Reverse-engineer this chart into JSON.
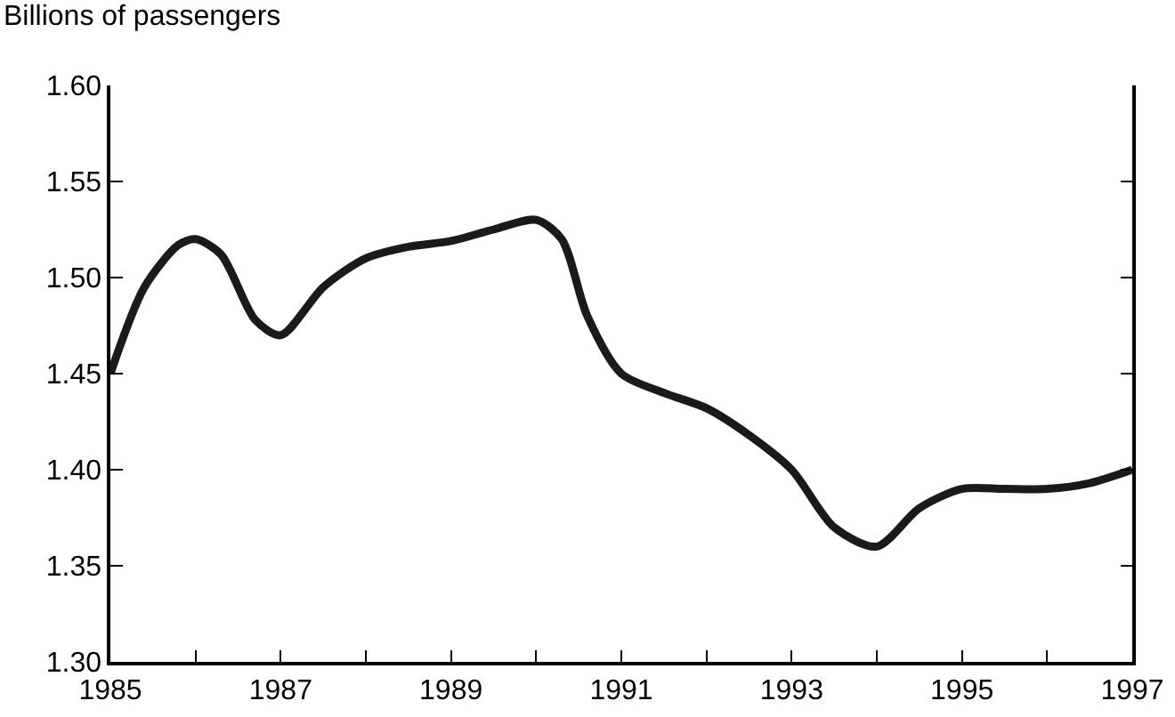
{
  "chart_data": {
    "type": "line",
    "ylabel": "Billions of passengers",
    "x": [
      1985,
      1985.4,
      1985.8,
      1986,
      1986.3,
      1986.7,
      1987,
      1987.5,
      1988,
      1988.5,
      1989,
      1989.5,
      1990,
      1990.3,
      1990.6,
      1991,
      1991.5,
      1992,
      1992.5,
      1993,
      1993.5,
      1994,
      1994.5,
      1995,
      1995.5,
      1996,
      1996.5,
      1997
    ],
    "series": [
      {
        "color": "#1a1a1a",
        "values": [
          1.45,
          1.495,
          1.517,
          1.52,
          1.512,
          1.478,
          1.47,
          1.495,
          1.51,
          1.516,
          1.519,
          1.525,
          1.53,
          1.52,
          1.48,
          1.45,
          1.44,
          1.432,
          1.418,
          1.4,
          1.37,
          1.36,
          1.38,
          1.39,
          1.39,
          1.39,
          1.393,
          1.4
        ]
      }
    ],
    "xlim": [
      1985,
      1997
    ],
    "xticks": [
      1985,
      {
        "value": 1986,
        "label": null
      },
      1987,
      {
        "value": 1988,
        "label": null
      },
      1989,
      {
        "value": 1990,
        "label": null
      },
      1991,
      {
        "value": 1992,
        "label": null
      },
      1993,
      {
        "value": 1994,
        "label": null
      },
      1995,
      {
        "value": 1996,
        "label": null
      },
      1997
    ],
    "ylim": [
      1.3,
      1.6
    ],
    "yticks": [
      {
        "value": 1.3,
        "label": "1.30"
      },
      {
        "value": 1.35,
        "label": "1.35"
      },
      {
        "value": 1.4,
        "label": "1.40"
      },
      {
        "value": 1.45,
        "label": "1.45"
      },
      {
        "value": 1.5,
        "label": "1.50"
      },
      {
        "value": 1.55,
        "label": "1.55"
      },
      {
        "value": 1.6,
        "label": "1.60"
      }
    ],
    "grid": false,
    "marker": "none",
    "line_style": "solid"
  }
}
